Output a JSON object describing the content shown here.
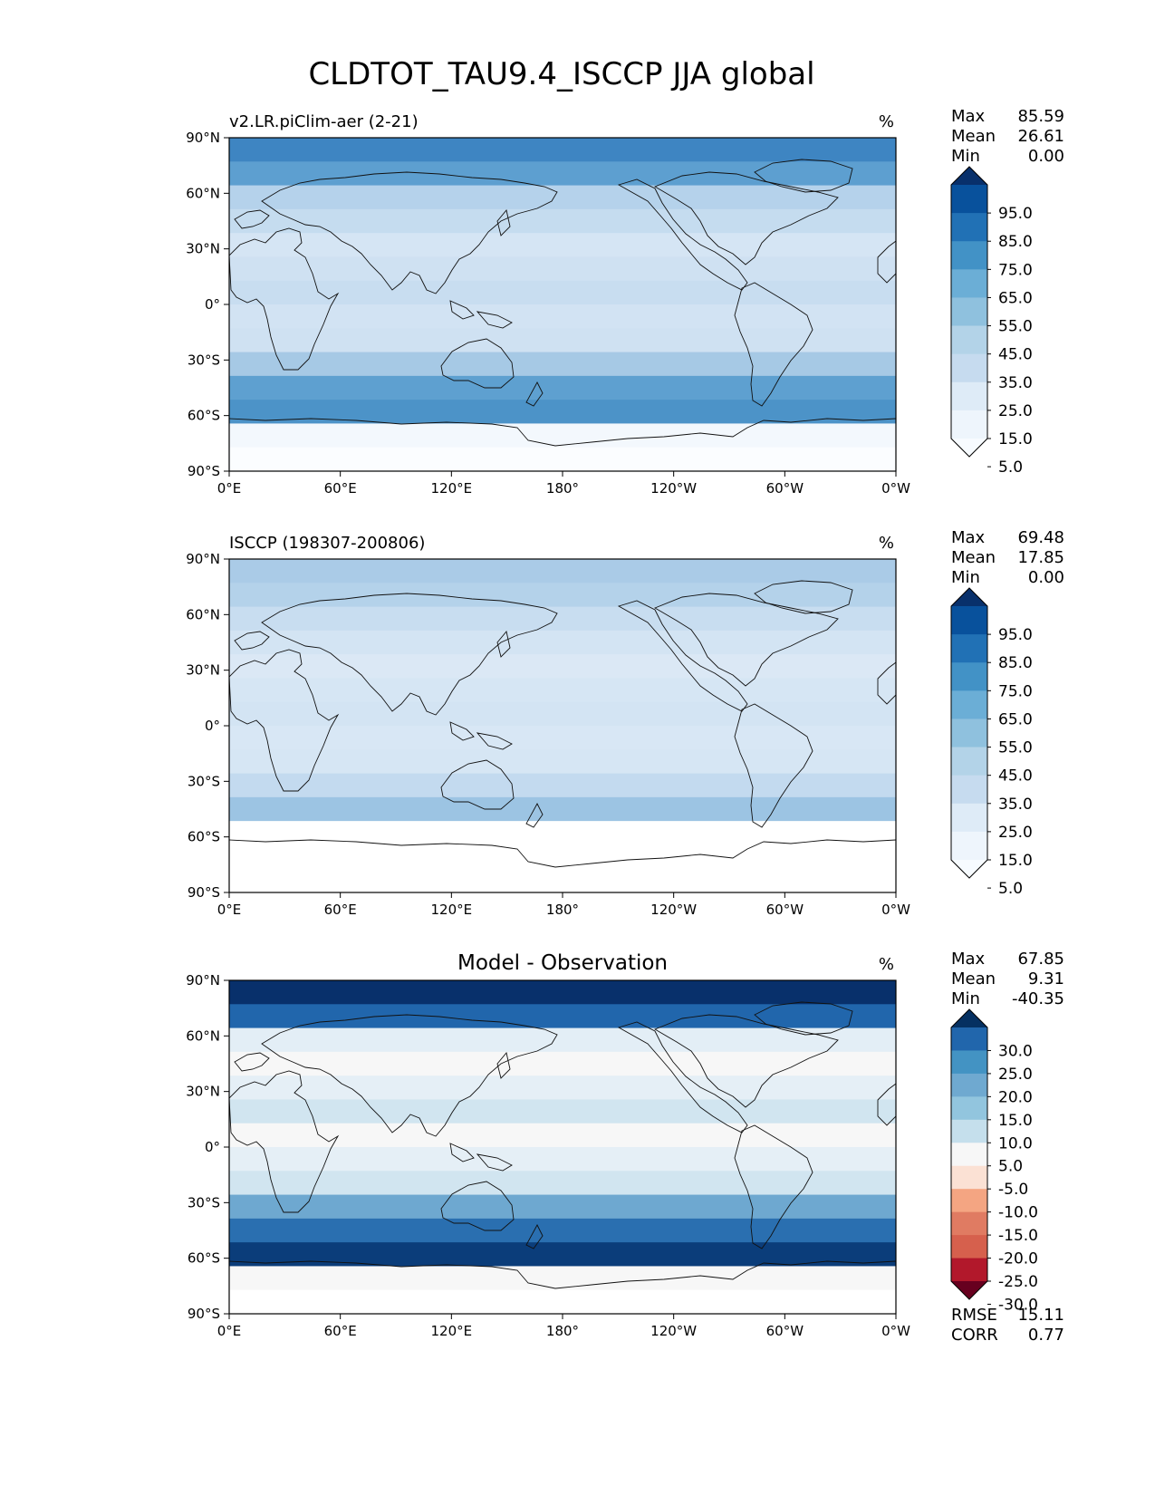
{
  "chart_data": {
    "type": "heatmap",
    "title": "CLDTOT_TAU9.4_ISCCP JJA global",
    "x_tick_labels": [
      "0°E",
      "60°E",
      "120°E",
      "180°",
      "120°W",
      "60°W",
      "0°W"
    ],
    "y_tick_labels": [
      "90°N",
      "60°N",
      "30°N",
      "0°",
      "30°S",
      "60°S",
      "90°S"
    ],
    "x_range": [
      0,
      360
    ],
    "y_range": [
      -90,
      90
    ],
    "panels": [
      {
        "id": "model",
        "left_title": "v2.LR.piClim-aer (2-21)",
        "center_title": "",
        "units": "%",
        "stats": [
          {
            "label": "Max",
            "value": "85.59"
          },
          {
            "label": "Mean",
            "value": "26.61"
          },
          {
            "label": "Min",
            "value": "0.00"
          }
        ],
        "colorbar_labels": [
          "95.0",
          "85.0",
          "75.0",
          "65.0",
          "55.0",
          "45.0",
          "35.0",
          "25.0",
          "15.0",
          "5.0"
        ],
        "colorbar_colors": [
          "#08306b",
          "#08519c",
          "#2171b5",
          "#4292c6",
          "#6baed6",
          "#8fc1de",
          "#b3d3e8",
          "#c6dbef",
          "#deebf7",
          "#eef5fc",
          "#f7fbff"
        ],
        "zonal_colors": [
          "#3e85c2",
          "#5d9fd0",
          "#b5d2eb",
          "#c5dcef",
          "#d5e5f4",
          "#cfe1f2",
          "#c8ddf0",
          "#d2e3f3",
          "#cfe1f2",
          "#a6c9e5",
          "#5ea0d0",
          "#4c93c8",
          "#f3f8fd",
          "#fbfdff"
        ]
      },
      {
        "id": "obs",
        "left_title": "ISCCP (198307-200806)",
        "center_title": "",
        "units": "%",
        "stats": [
          {
            "label": "Max",
            "value": "69.48"
          },
          {
            "label": "Mean",
            "value": "17.85"
          },
          {
            "label": "Min",
            "value": "0.00"
          }
        ],
        "colorbar_labels": [
          "95.0",
          "85.0",
          "75.0",
          "65.0",
          "55.0",
          "45.0",
          "35.0",
          "25.0",
          "15.0",
          "5.0"
        ],
        "colorbar_colors": [
          "#08306b",
          "#08519c",
          "#2171b5",
          "#4292c6",
          "#6baed6",
          "#8fc1de",
          "#b3d3e8",
          "#c6dbef",
          "#deebf7",
          "#eef5fc",
          "#f7fbff"
        ],
        "zonal_colors": [
          "#aacbe7",
          "#b4d2ea",
          "#c8ddf0",
          "#d3e4f3",
          "#dbe8f5",
          "#d6e6f4",
          "#d3e4f3",
          "#d8e7f5",
          "#d6e6f4",
          "#c3daef",
          "#9cc4e3",
          "#ffffff",
          "#ffffff",
          "#ffffff"
        ]
      },
      {
        "id": "diff",
        "left_title": "",
        "center_title": "Model - Observation",
        "units": "%",
        "stats": [
          {
            "label": "Max",
            "value": "67.85"
          },
          {
            "label": "Mean",
            "value": "9.31"
          },
          {
            "label": "Min",
            "value": "-40.35"
          }
        ],
        "colorbar_labels": [
          "30.0",
          "25.0",
          "20.0",
          "15.0",
          "10.0",
          "5.0",
          "-5.0",
          "-10.0",
          "-15.0",
          "-20.0",
          "-25.0",
          "-30.0"
        ],
        "colorbar_colors": [
          "#053061",
          "#2166ac",
          "#4393c3",
          "#6fa9d0",
          "#92c5de",
          "#c5dfec",
          "#f7f7f7",
          "#fbe1d4",
          "#f4a582",
          "#e07b62",
          "#d6604d",
          "#b2182b",
          "#67001f"
        ],
        "zonal_colors": [
          "#08306b",
          "#2166ac",
          "#e3eef6",
          "#f7f7f7",
          "#e5eff6",
          "#d1e5f0",
          "#f7f7f7",
          "#e5eff6",
          "#d1e5f0",
          "#6ea8d0",
          "#2a6fb0",
          "#0b3d7a",
          "#f7f7f7",
          "#ffffff"
        ],
        "rmse": {
          "label": "RMSE",
          "value": "15.11"
        },
        "corr": {
          "label": "CORR",
          "value": "0.77"
        }
      }
    ]
  }
}
